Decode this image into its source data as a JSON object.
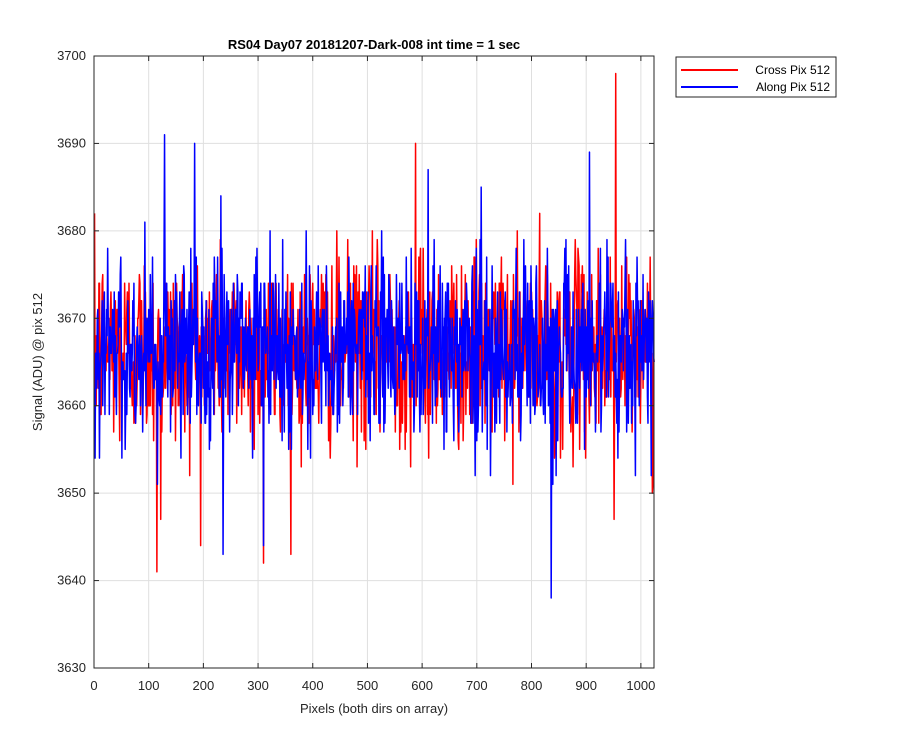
{
  "chart_data": {
    "type": "line",
    "title": "RS04 Day07 20181207-Dark-008 int time = 1 sec",
    "xlabel": "Pixels (both dirs on array)",
    "ylabel": "Signal (ADU) @ pix 512",
    "xlim": [
      0,
      1024
    ],
    "ylim": [
      3630,
      3700
    ],
    "xticks": [
      0,
      100,
      200,
      300,
      400,
      500,
      600,
      700,
      800,
      900,
      1000
    ],
    "yticks": [
      3630,
      3640,
      3650,
      3660,
      3670,
      3680,
      3690,
      3700
    ],
    "grid": true,
    "legend_position": "outside-top-right",
    "n_points": 1024,
    "series": [
      {
        "name": "Cross Pix 512",
        "color": "#ff0000",
        "mean": 3666.5,
        "std": 5.5,
        "range": [
          3641,
          3698
        ],
        "notable_points": [
          {
            "x": 114,
            "y": 3641
          },
          {
            "x": 121,
            "y": 3647
          },
          {
            "x": 309,
            "y": 3642
          },
          {
            "x": 587,
            "y": 3690
          },
          {
            "x": 953,
            "y": 3698
          },
          {
            "x": 950,
            "y": 3647
          },
          {
            "x": 1020,
            "y": 3650
          }
        ]
      },
      {
        "name": "Along Pix 512",
        "color": "#0000ff",
        "mean": 3666.5,
        "std": 5.5,
        "range": [
          3638,
          3691
        ],
        "notable_points": [
          {
            "x": 128,
            "y": 3691
          },
          {
            "x": 183,
            "y": 3690
          },
          {
            "x": 235,
            "y": 3643
          },
          {
            "x": 309,
            "y": 3644
          },
          {
            "x": 835,
            "y": 3638
          },
          {
            "x": 905,
            "y": 3689
          }
        ]
      }
    ]
  }
}
